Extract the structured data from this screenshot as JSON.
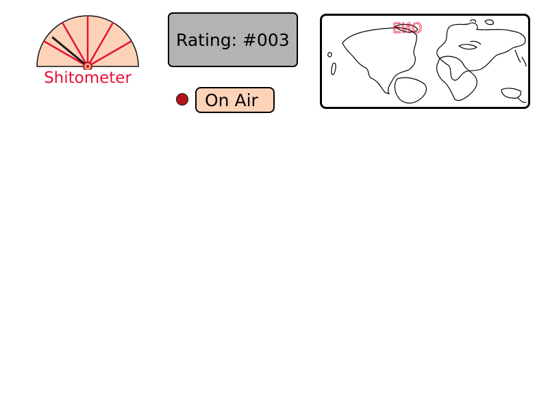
{
  "gauge": {
    "label": "Shitometer",
    "label_color": "#e8103a",
    "fill_color": "#fdd3b8",
    "tick_color": "#e8103a",
    "needle_color": "#1a1a1a",
    "value_fraction": 0.22
  },
  "rating": {
    "text": "Rating: #003",
    "background": "#b3b3b3"
  },
  "on_air": {
    "label": "On Air",
    "indicator_color": "#b3151a",
    "button_color": "#fdd3b8"
  },
  "map": {
    "annotation": "EИО",
    "annotation_color": "#e8103a"
  }
}
